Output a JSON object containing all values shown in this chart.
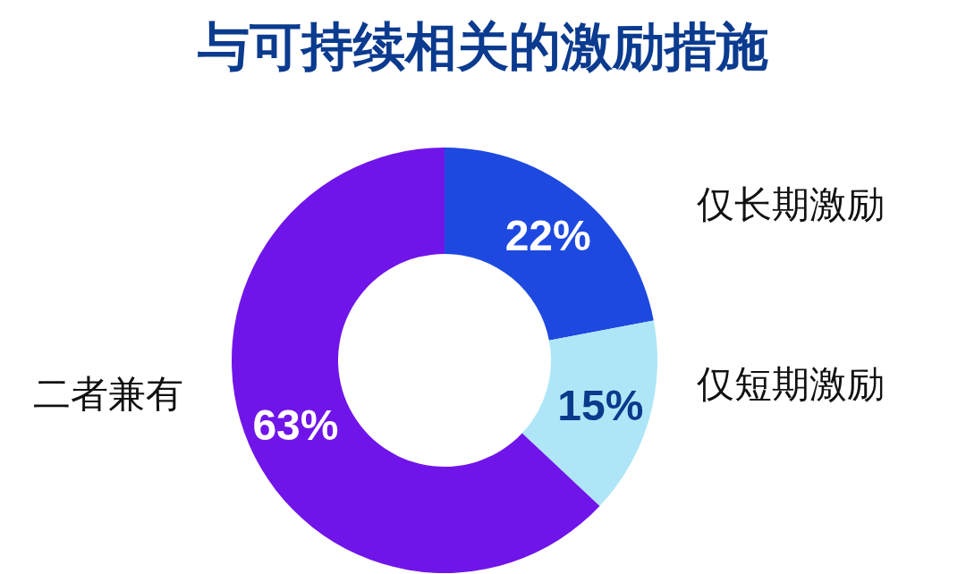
{
  "chart_data": {
    "type": "donut",
    "title": "与可持续相关的激励措施",
    "categories": [
      "仅长期激励",
      "仅短期激励",
      "二者兼有"
    ],
    "values": [
      22,
      15,
      63
    ],
    "colors": [
      "#1e49e0",
      "#aee6f8",
      "#7015e9"
    ],
    "value_labels": [
      "22%",
      "15%",
      "63%"
    ]
  }
}
